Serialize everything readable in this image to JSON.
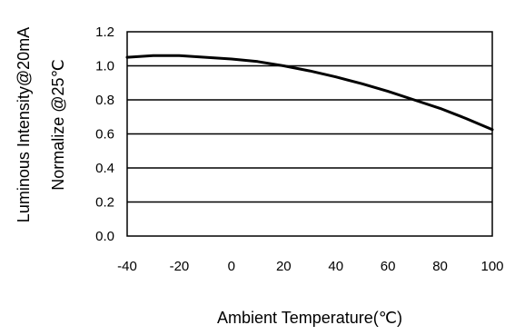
{
  "chart_data": {
    "type": "line",
    "xlabel": "Ambient Temperature(℃)",
    "ylabel_line1": "Luminous Intensity@20mA",
    "ylabel_line2": "Normalize @25℃",
    "xlim": [
      -40,
      100
    ],
    "ylim": [
      0,
      1.2
    ],
    "x_ticks": [
      "-40",
      "-20",
      "0",
      "20",
      "40",
      "60",
      "80",
      "100"
    ],
    "y_ticks": [
      "0.0",
      "0.2",
      "0.4",
      "0.6",
      "0.8",
      "1.0",
      "1.2"
    ],
    "grid": "horizontal",
    "series": [
      {
        "color": "#000000",
        "x": [
          -40,
          -30,
          -20,
          -10,
          0,
          10,
          20,
          30,
          40,
          50,
          60,
          70,
          80,
          90,
          100
        ],
        "y": [
          1.05,
          1.06,
          1.06,
          1.05,
          1.04,
          1.025,
          1.0,
          0.97,
          0.935,
          0.895,
          0.85,
          0.8,
          0.75,
          0.69,
          0.625
        ]
      }
    ]
  }
}
